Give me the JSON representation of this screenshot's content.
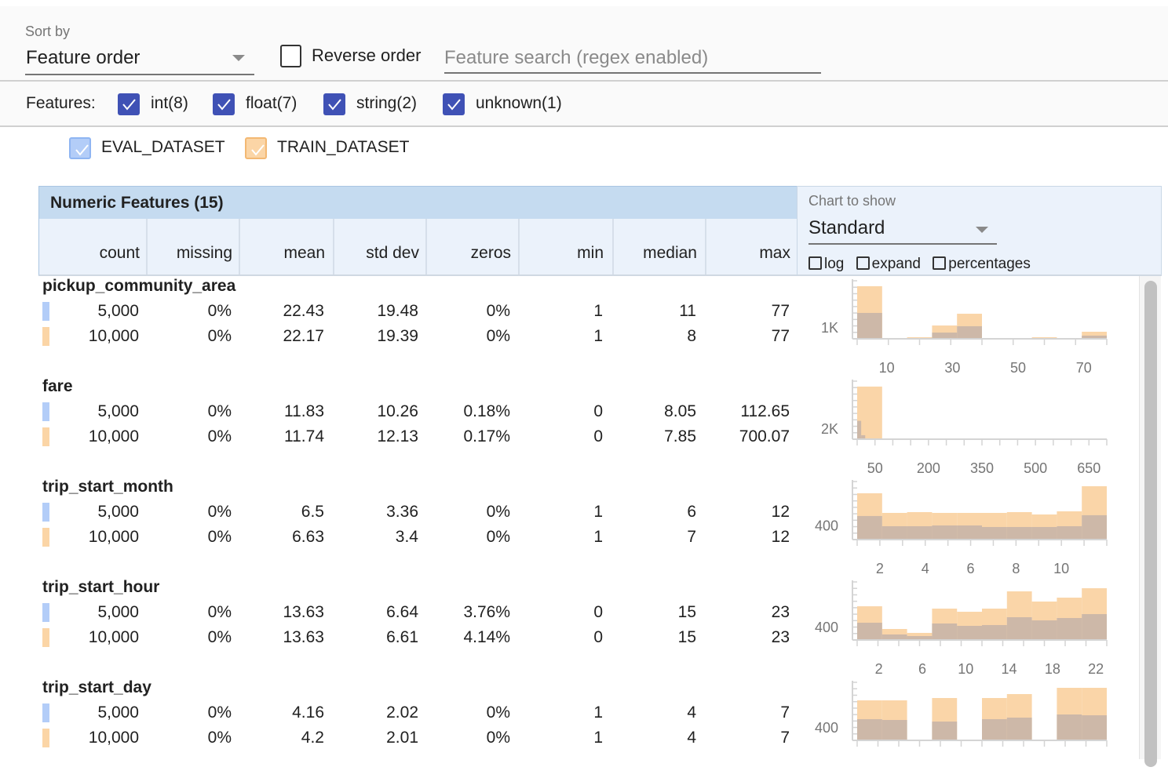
{
  "toolbar": {
    "sort_label": "Sort by",
    "sort_value": "Feature order",
    "reverse_label": "Reverse order",
    "reverse_checked": false,
    "search_placeholder": "Feature search (regex enabled)"
  },
  "filters": {
    "label": "Features:",
    "types": [
      {
        "label": "int(8)",
        "checked": true
      },
      {
        "label": "float(7)",
        "checked": true
      },
      {
        "label": "string(2)",
        "checked": true
      },
      {
        "label": "unknown(1)",
        "checked": true
      }
    ]
  },
  "datasets": [
    {
      "label": "EVAL_DATASET",
      "color": "#b3cdf8",
      "checked": true
    },
    {
      "label": "TRAIN_DATASET",
      "color": "#fbd5a6",
      "checked": true
    }
  ],
  "table": {
    "title": "Numeric Features (15)",
    "columns": [
      "count",
      "missing",
      "mean",
      "std dev",
      "zeros",
      "min",
      "median",
      "max"
    ]
  },
  "chart_controls": {
    "label": "Chart to show",
    "value": "Standard",
    "log": "log",
    "expand": "expand",
    "percentages": "percentages"
  },
  "colors": {
    "eval": "#b3cdf8",
    "train": "#fbd5a6",
    "overlap": "#cdb8a8",
    "accent": "#3f51b5",
    "header": "#c5dbf0"
  },
  "features": [
    {
      "name": "pickup_community_area",
      "rows": [
        [
          "5,000",
          "0%",
          "22.43",
          "19.48",
          "0%",
          "1",
          "11",
          "77"
        ],
        [
          "10,000",
          "0%",
          "22.17",
          "19.39",
          "0%",
          "1",
          "8",
          "77"
        ]
      ],
      "chart": {
        "type": "bar",
        "y_label": "1K",
        "y_label_value": 1000,
        "y_max": 4930,
        "domain": [
          1,
          77
        ],
        "x_ticks": [
          "10",
          "30",
          "50",
          "70"
        ],
        "train": [
          4470,
          67,
          133,
          1130,
          2130,
          0,
          0,
          133,
          0,
          600
        ],
        "eval": [
          2200,
          0,
          67,
          530,
          1070,
          0,
          0,
          67,
          0,
          270
        ]
      }
    },
    {
      "name": "fare",
      "rows": [
        [
          "5,000",
          "0%",
          "11.83",
          "10.26",
          "0.18%",
          "0",
          "8.05",
          "112.65"
        ],
        [
          "10,000",
          "0%",
          "11.74",
          "12.13",
          "0.17%",
          "0",
          "7.85",
          "700.07"
        ]
      ],
      "chart": {
        "type": "bar",
        "y_label": "2K",
        "y_label_value": 2000,
        "y_max": 10400,
        "domain": [
          0,
          700.07
        ],
        "x_ticks": [
          "50",
          "200",
          "350",
          "500",
          "650"
        ],
        "train": [
          9430,
          0,
          0,
          0,
          0,
          0,
          0,
          0,
          0,
          0
        ],
        "eval_domain": [
          0,
          112.65
        ],
        "eval": [
          3290,
          715,
          143,
          143,
          0,
          0,
          0,
          0,
          0,
          0
        ]
      }
    },
    {
      "name": "trip_start_month",
      "rows": [
        [
          "5,000",
          "0%",
          "6.5",
          "3.36",
          "0%",
          "1",
          "6",
          "12"
        ],
        [
          "10,000",
          "0%",
          "6.63",
          "3.4",
          "0%",
          "1",
          "7",
          "12"
        ]
      ],
      "chart": {
        "type": "bar",
        "y_label": "400",
        "y_label_value": 400,
        "y_max": 1620,
        "domain": [
          1,
          12
        ],
        "x_ticks": [
          "2",
          "4",
          "6",
          "8",
          "10"
        ],
        "train": [
          1293,
          745,
          767,
          745,
          745,
          745,
          767,
          701,
          789,
          1490
        ],
        "eval": [
          658,
          373,
          373,
          395,
          395,
          351,
          351,
          351,
          373,
          680
        ]
      }
    },
    {
      "name": "trip_start_hour",
      "rows": [
        [
          "5,000",
          "0%",
          "13.63",
          "6.64",
          "3.76%",
          "0",
          "15",
          "23"
        ],
        [
          "10,000",
          "0%",
          "13.63",
          "6.61",
          "4.14%",
          "0",
          "15",
          "23"
        ]
      ],
      "chart": {
        "type": "bar",
        "y_label": "400",
        "y_label_value": 400,
        "y_max": 1740,
        "domain": [
          0,
          23
        ],
        "x_ticks": [
          "2",
          "6",
          "10",
          "14",
          "18",
          "22"
        ],
        "train": [
          1010,
          329,
          212,
          940,
          846,
          940,
          1457,
          1152,
          1269,
          1551
        ],
        "eval": [
          517,
          165,
          118,
          494,
          423,
          447,
          682,
          588,
          658,
          776
        ]
      }
    },
    {
      "name": "trip_start_day",
      "rows": [
        [
          "5,000",
          "0%",
          "4.16",
          "2.02",
          "0%",
          "1",
          "4",
          "7"
        ],
        [
          "10,000",
          "0%",
          "4.2",
          "2.01",
          "0%",
          "1",
          "4",
          "7"
        ]
      ],
      "chart": {
        "type": "bar",
        "y_label": "400",
        "y_label_value": 400,
        "y_max": 1740,
        "domain": [
          1,
          7
        ],
        "x_ticks": [],
        "train": [
          1199,
          1199,
          0,
          1269,
          0,
          1269,
          1387,
          0,
          1575,
          1575
        ],
        "eval": [
          635,
          611,
          0,
          564,
          0,
          635,
          682,
          0,
          776,
          752
        ]
      }
    }
  ]
}
